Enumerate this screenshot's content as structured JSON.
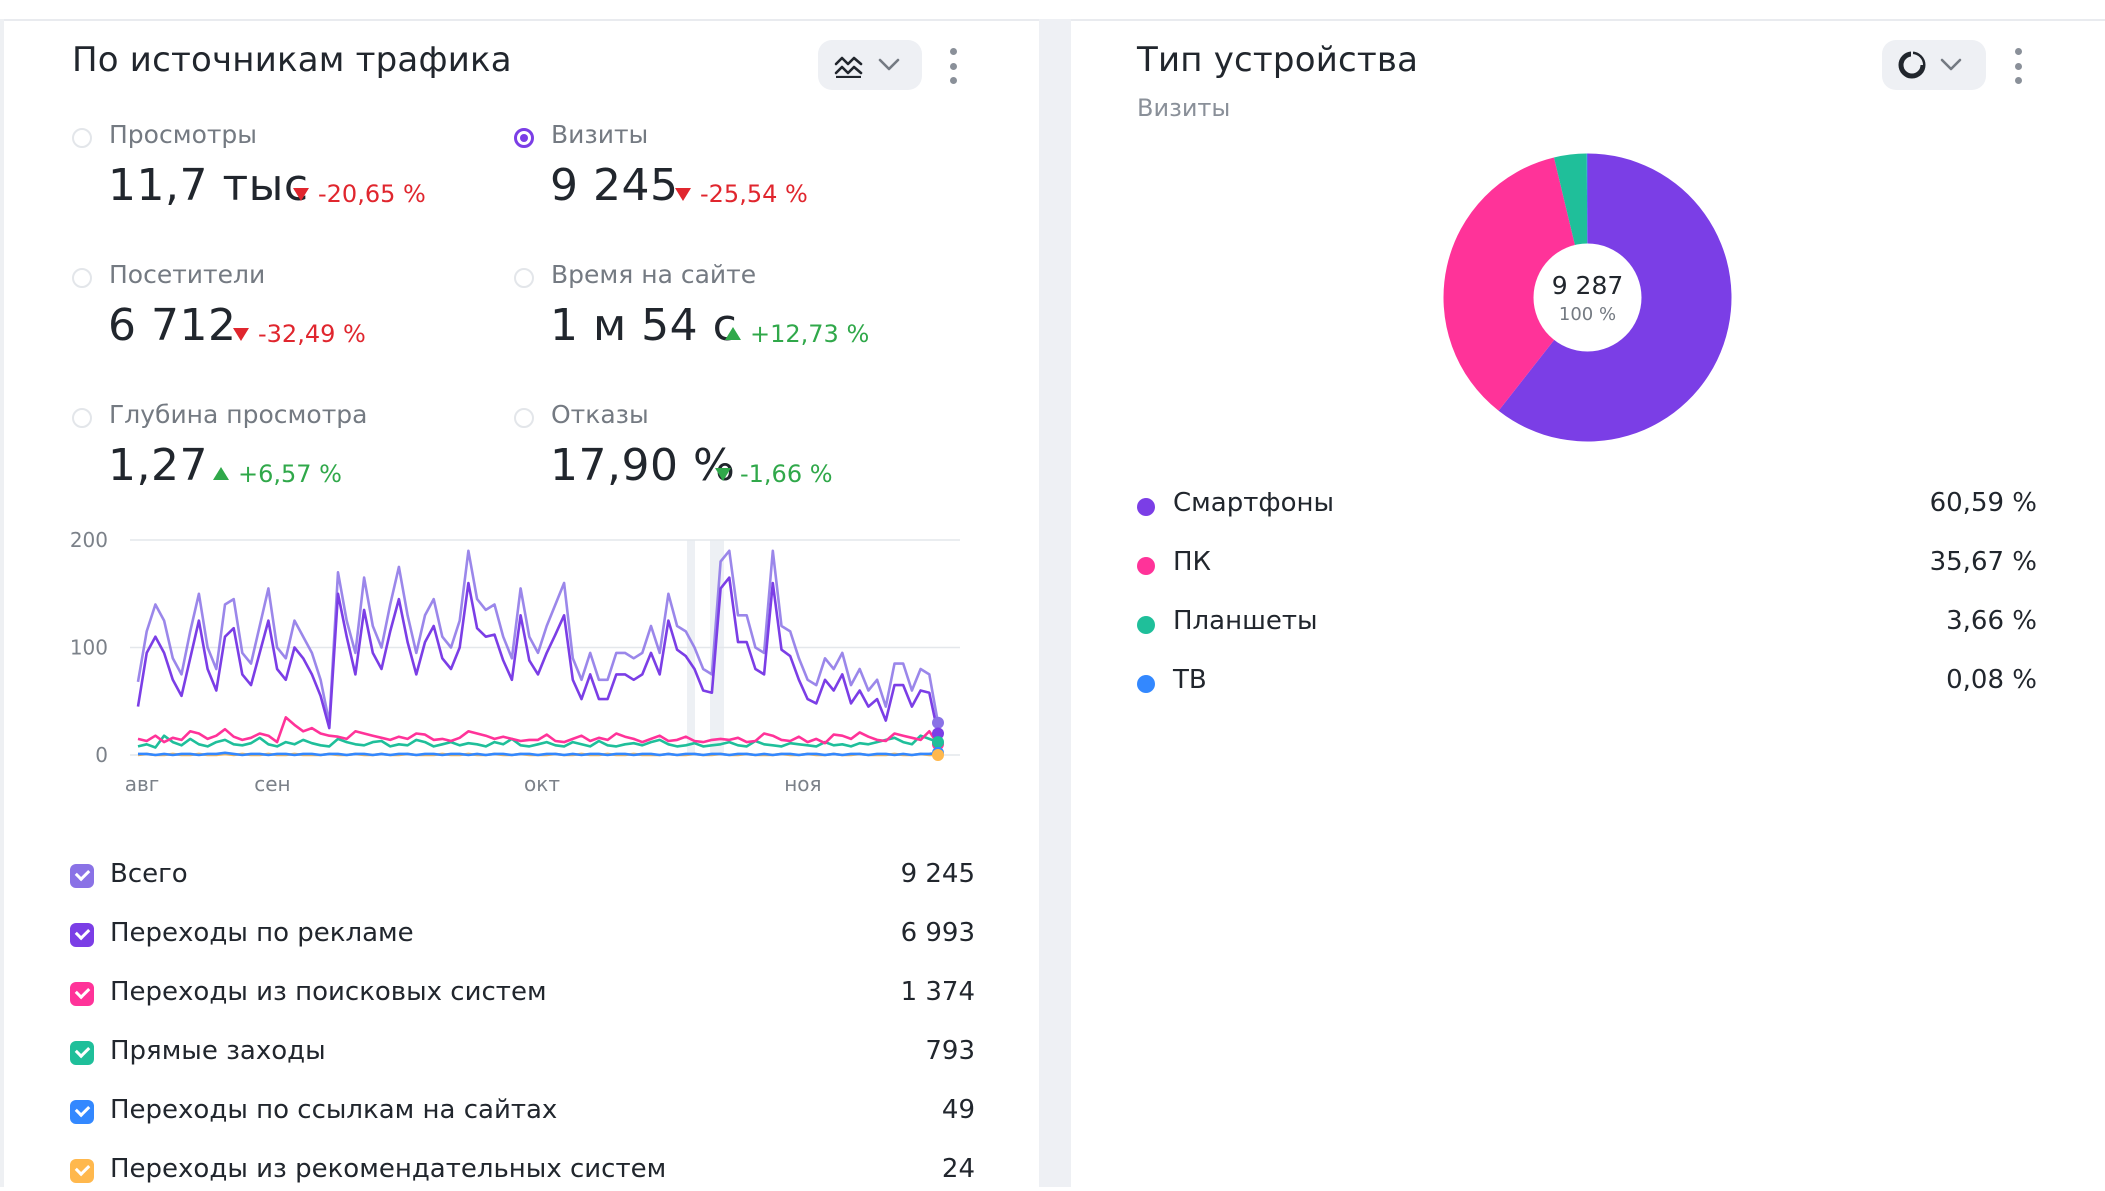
{
  "left_panel": {
    "title": "По источникам трафика",
    "chart_type_icon": "line-chart-icon",
    "metrics": [
      {
        "label": "Просмотры",
        "value": "11,7 тыс",
        "delta": "-20,65 %",
        "direction": "down",
        "selected": false
      },
      {
        "label": "Визиты",
        "value": "9 245",
        "delta": "-25,54 %",
        "direction": "down",
        "selected": true
      },
      {
        "label": "Посетители",
        "value": "6 712",
        "delta": "-32,49 %",
        "direction": "down",
        "selected": false
      },
      {
        "label": "Время на сайте",
        "value": "1 м 54 с",
        "delta": "+12,73 %",
        "direction": "up",
        "selected": false
      },
      {
        "label": "Глубина просмотра",
        "value": "1,27",
        "delta": "+6,57 %",
        "direction": "up",
        "selected": false
      },
      {
        "label": "Отказы",
        "value": "17,90 %",
        "delta": "-1,66 %",
        "direction": "down-good",
        "selected": false
      }
    ],
    "legend": [
      {
        "name": "Всего",
        "value": "9 245",
        "color": "#8a72e6"
      },
      {
        "name": "Переходы по рекламе",
        "value": "6 993",
        "color": "#7b3ee6"
      },
      {
        "name": "Переходы из поисковых систем",
        "value": "1 374",
        "color": "#ff3399"
      },
      {
        "name": "Прямые заходы",
        "value": "793",
        "color": "#1fbf9a"
      },
      {
        "name": "Переходы по ссылкам на сайтах",
        "value": "49",
        "color": "#3388ff"
      },
      {
        "name": "Переходы из рекомендательных систем",
        "value": "24",
        "color": "#ffb84d"
      }
    ]
  },
  "right_panel": {
    "title": "Тип устройства",
    "subtitle": "Визиты",
    "chart_type_icon": "pie-chart-icon",
    "center_value": "9 287",
    "center_percent": "100 %",
    "devices": [
      {
        "name": "Смартфоны",
        "value": "60,59 %",
        "color": "#7b3ee6"
      },
      {
        "name": "ПК",
        "value": "35,67 %",
        "color": "#ff3399"
      },
      {
        "name": "Планшеты",
        "value": "3,66 %",
        "color": "#1fbf9a"
      },
      {
        "name": "ТВ",
        "value": "0,08 %",
        "color": "#3388ff"
      }
    ]
  },
  "chart_data": [
    {
      "type": "line",
      "ylim": [
        0,
        200
      ],
      "yticks": [
        "0",
        "100",
        "200"
      ],
      "xticks": [
        "авг",
        "сен",
        "окт",
        "ноя"
      ],
      "series": [
        {
          "name": "Всего",
          "color": "#8a72e6",
          "values": [
            68,
            115,
            140,
            125,
            90,
            75,
            115,
            150,
            100,
            80,
            140,
            145,
            95,
            85,
            120,
            155,
            100,
            90,
            125,
            110,
            95,
            70,
            30,
            170,
            125,
            95,
            165,
            120,
            100,
            140,
            175,
            130,
            95,
            130,
            145,
            110,
            100,
            125,
            190,
            145,
            135,
            140,
            110,
            90,
            155,
            110,
            95,
            120,
            140,
            160,
            90,
            70,
            95,
            70,
            70,
            95,
            95,
            90,
            95,
            120,
            95,
            150,
            120,
            115,
            100,
            80,
            75,
            180,
            190,
            130,
            130,
            100,
            95,
            190,
            120,
            115,
            90,
            70,
            65,
            90,
            80,
            95,
            65,
            80,
            60,
            70,
            45,
            85,
            85,
            60,
            80,
            75,
            30
          ]
        },
        {
          "name": "Переходы по рекламе",
          "color": "#7b3ee6",
          "values": [
            45,
            95,
            110,
            95,
            70,
            55,
            90,
            125,
            80,
            60,
            110,
            118,
            75,
            65,
            95,
            125,
            80,
            70,
            100,
            90,
            75,
            55,
            25,
            150,
            110,
            75,
            135,
            95,
            80,
            115,
            145,
            105,
            75,
            105,
            120,
            90,
            80,
            100,
            160,
            118,
            110,
            112,
            88,
            70,
            130,
            88,
            75,
            95,
            112,
            130,
            70,
            52,
            75,
            52,
            52,
            75,
            75,
            70,
            75,
            95,
            75,
            125,
            98,
            92,
            80,
            60,
            58,
            155,
            165,
            105,
            105,
            80,
            75,
            160,
            98,
            92,
            70,
            52,
            48,
            70,
            60,
            75,
            48,
            60,
            45,
            52,
            32,
            65,
            65,
            45,
            60,
            58,
            20
          ]
        },
        {
          "name": "Переходы из поисковых систем",
          "color": "#ff3399",
          "values": [
            15,
            13,
            18,
            12,
            16,
            14,
            22,
            20,
            15,
            18,
            24,
            17,
            14,
            16,
            20,
            18,
            12,
            35,
            28,
            22,
            25,
            20,
            18,
            17,
            15,
            22,
            20,
            18,
            16,
            14,
            17,
            15,
            20,
            19,
            14,
            15,
            13,
            16,
            22,
            20,
            18,
            15,
            17,
            15,
            13,
            14,
            14,
            19,
            13,
            12,
            15,
            18,
            13,
            16,
            14,
            20,
            17,
            15,
            12,
            15,
            18,
            13,
            14,
            17,
            13,
            12,
            14,
            15,
            14,
            16,
            12,
            13,
            20,
            18,
            14,
            13,
            17,
            12,
            15,
            11,
            19,
            18,
            15,
            21,
            17,
            14,
            13,
            20,
            18,
            16,
            14,
            22,
            10
          ]
        },
        {
          "name": "Прямые заходы",
          "color": "#1fbf9a",
          "values": [
            8,
            10,
            7,
            18,
            12,
            9,
            15,
            10,
            8,
            12,
            14,
            10,
            9,
            11,
            16,
            10,
            8,
            12,
            10,
            14,
            11,
            9,
            8,
            15,
            12,
            10,
            9,
            12,
            13,
            8,
            10,
            9,
            14,
            12,
            8,
            10,
            12,
            9,
            11,
            10,
            8,
            12,
            10,
            15,
            9,
            8,
            10,
            12,
            9,
            8,
            12,
            10,
            8,
            13,
            9,
            8,
            10,
            11,
            9,
            12,
            14,
            10,
            8,
            9,
            11,
            8,
            9,
            10,
            12,
            9,
            8,
            13,
            10,
            9,
            8,
            11,
            10,
            9,
            8,
            12,
            9,
            10,
            8,
            11,
            10,
            12,
            14,
            16,
            12,
            10,
            18,
            15,
            12
          ]
        },
        {
          "name": "Переходы по ссылкам на сайтах",
          "color": "#3388ff",
          "values": [
            1,
            1,
            0,
            1,
            0,
            1,
            1,
            0,
            1,
            1,
            2,
            1,
            0,
            1,
            1,
            0,
            1,
            1,
            0,
            1,
            1,
            0,
            1,
            1,
            0,
            1,
            1,
            0,
            1,
            0,
            1,
            1,
            0,
            1,
            1,
            0,
            1,
            1,
            0,
            1,
            0,
            1,
            1,
            0,
            1,
            1,
            0,
            1,
            1,
            0,
            1,
            0,
            1,
            1,
            0,
            1,
            1,
            0,
            1,
            1,
            0,
            1,
            0,
            1,
            1,
            0,
            1,
            1,
            0,
            1,
            1,
            0,
            1,
            0,
            1,
            1,
            0,
            1,
            1,
            0,
            1,
            0,
            1,
            1,
            0,
            1,
            1,
            0,
            1,
            0,
            1,
            1,
            2
          ]
        },
        {
          "name": "Переходы из рекомендательных систем",
          "color": "#ffb84d",
          "values": [
            0,
            1,
            0,
            0,
            1,
            0,
            0,
            1,
            0,
            0,
            1,
            0,
            1,
            0,
            0,
            1,
            0,
            0,
            1,
            0,
            0,
            0,
            1,
            0,
            0,
            1,
            0,
            0,
            1,
            0,
            0,
            1,
            0,
            0,
            0,
            1,
            0,
            0,
            1,
            0,
            0,
            1,
            0,
            0,
            1,
            0,
            0,
            0,
            1,
            0,
            0,
            1,
            0,
            0,
            1,
            0,
            0,
            1,
            0,
            0,
            0,
            1,
            0,
            0,
            1,
            0,
            0,
            1,
            0,
            0,
            1,
            0,
            0,
            0,
            1,
            0,
            0,
            1,
            0,
            0,
            1,
            0,
            0,
            1,
            0,
            0,
            0,
            1,
            0,
            0,
            1,
            0,
            0
          ]
        }
      ]
    },
    {
      "type": "pie",
      "categories": [
        "Смартфоны",
        "ПК",
        "Планшеты",
        "ТВ"
      ],
      "values": [
        60.59,
        35.67,
        3.66,
        0.08
      ],
      "colors": [
        "#7b3ee6",
        "#ff3399",
        "#1fbf9a",
        "#3388ff"
      ],
      "total": "9 287"
    }
  ]
}
